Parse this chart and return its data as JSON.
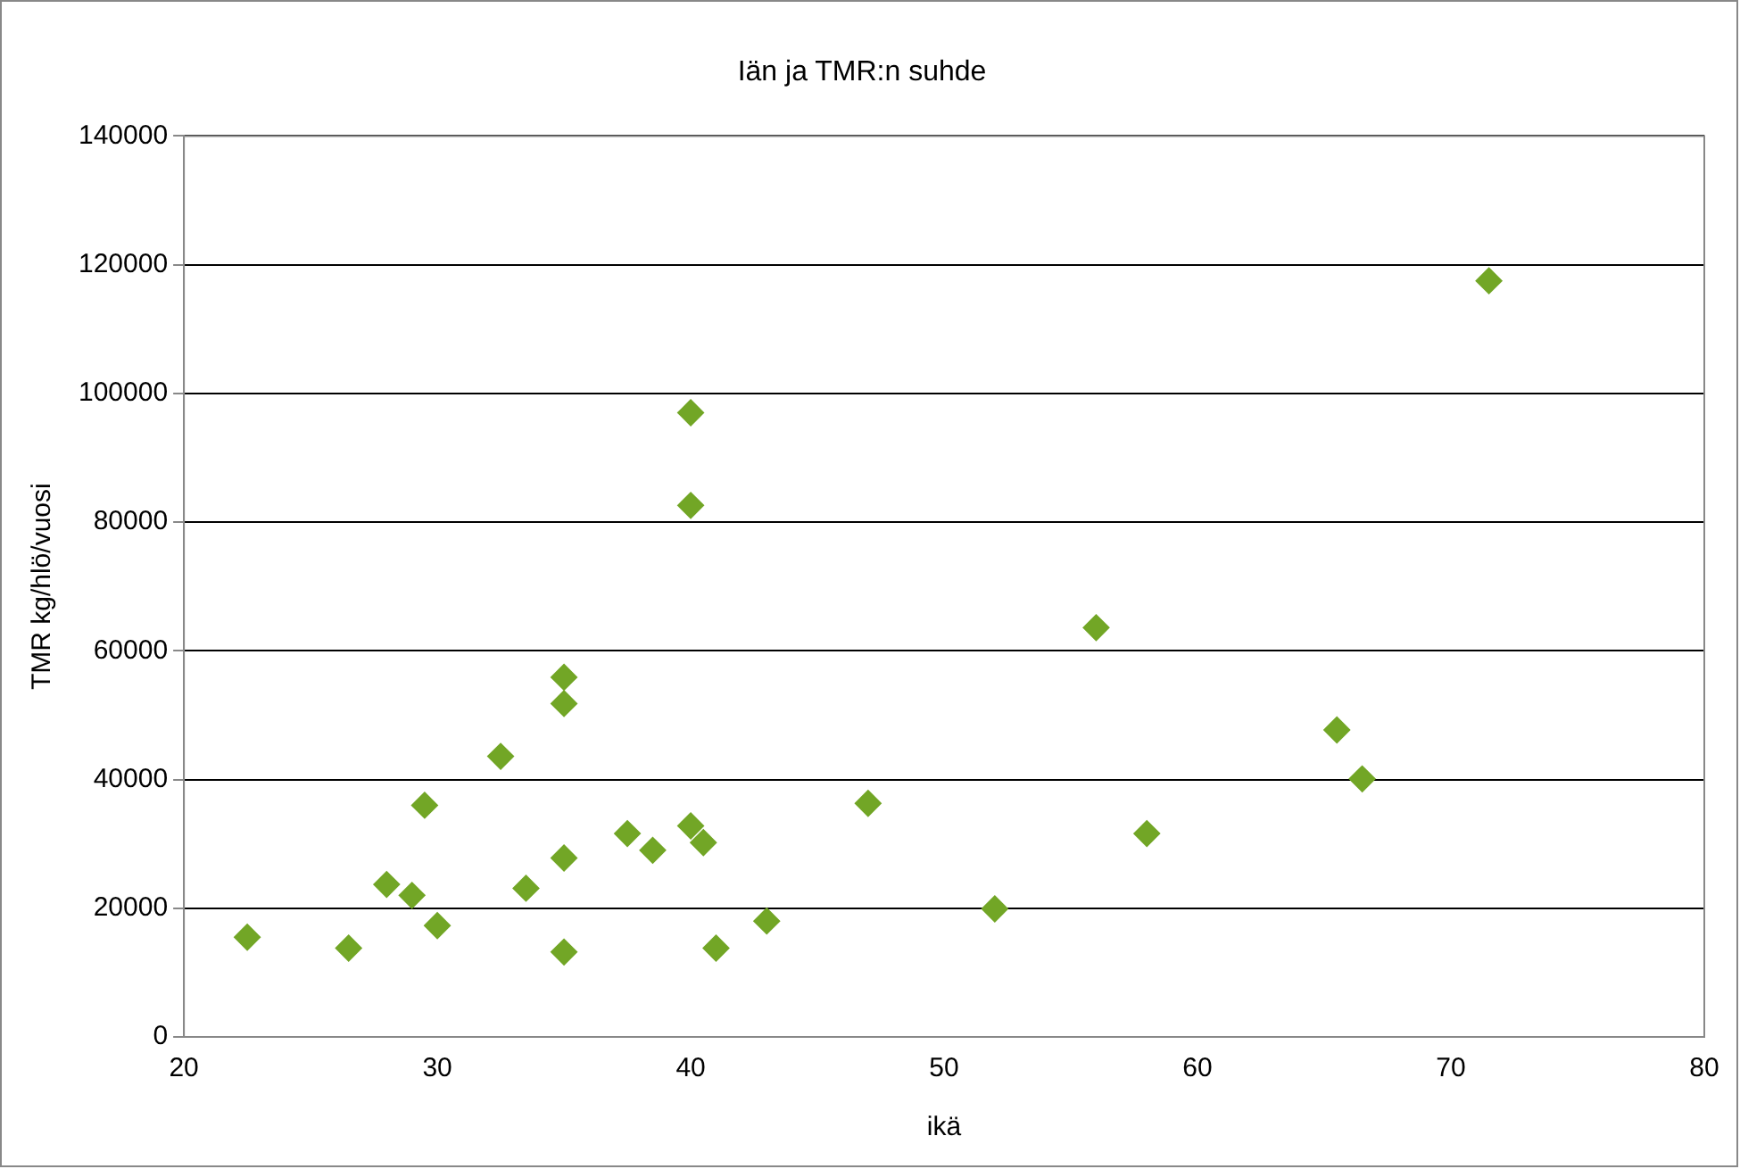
{
  "chart_data": {
    "type": "scatter",
    "title": "Iän ja TMR:n suhde",
    "xlabel": "ikä",
    "ylabel": "TMR kg/hlö/vuosi",
    "x": [
      22.5,
      26.5,
      28,
      29,
      29.5,
      30,
      32.5,
      33.5,
      35,
      35,
      35,
      35,
      37.5,
      38.5,
      40,
      40,
      40,
      40.5,
      41,
      43,
      47,
      52,
      56,
      58,
      65.5,
      66.5,
      71.5
    ],
    "values": [
      15500,
      13800,
      23700,
      22000,
      36000,
      17300,
      43600,
      23100,
      55900,
      51800,
      27800,
      13200,
      31600,
      29000,
      97000,
      82600,
      32800,
      30200,
      13800,
      18000,
      36300,
      19900,
      63600,
      31600,
      47700,
      40100,
      117500
    ],
    "color": "#72a626",
    "marker": "diamond",
    "xlim": [
      20,
      80
    ],
    "xticks": [
      20,
      30,
      40,
      50,
      60,
      70,
      80
    ],
    "ylim": [
      0,
      140000
    ],
    "yticks": [
      0,
      20000,
      40000,
      60000,
      80000,
      100000,
      120000,
      140000
    ],
    "grid": "y"
  }
}
